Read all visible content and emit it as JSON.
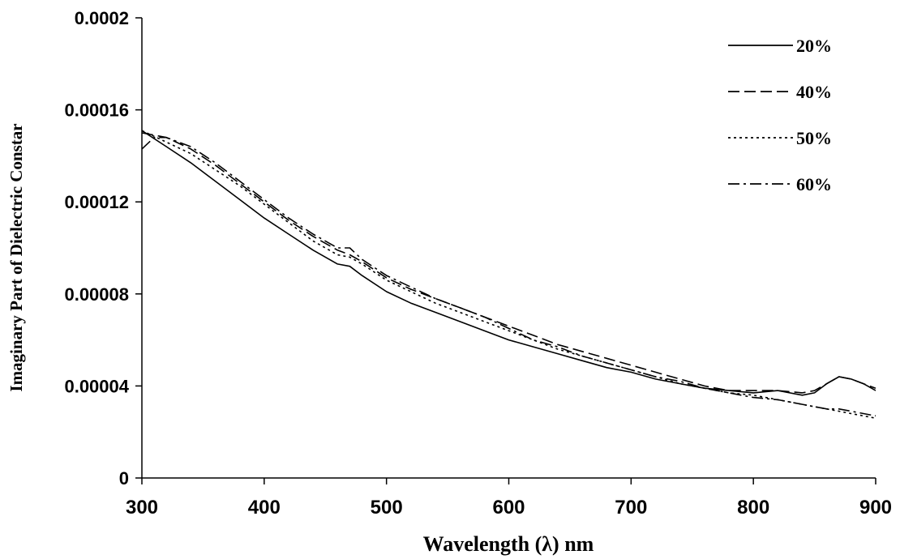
{
  "chart_data": {
    "type": "line",
    "title": "",
    "xlabel": "Wavelength (λ) nm",
    "ylabel": "Imaginary Part of Dielectric Constar",
    "xlim": [
      300,
      900
    ],
    "ylim": [
      0,
      0.0002
    ],
    "xticks": [
      300,
      400,
      500,
      600,
      700,
      800,
      900
    ],
    "xtick_labels": [
      "300",
      "400",
      "500",
      "600",
      "700",
      "800",
      "900"
    ],
    "yticks": [
      0,
      4e-05,
      8e-05,
      0.00012,
      0.00016,
      0.0002
    ],
    "ytick_labels": [
      "0",
      "0.00004",
      "0.00008",
      "0.00012",
      "0.00016",
      "0.0002"
    ],
    "grid": false,
    "legend_position": "top-right",
    "series": [
      {
        "name": "20%",
        "dash": "solid",
        "x": [
          300,
          320,
          340,
          360,
          380,
          400,
          420,
          440,
          460,
          470,
          480,
          500,
          520,
          540,
          560,
          580,
          600,
          620,
          640,
          660,
          680,
          700,
          720,
          740,
          760,
          780,
          800,
          820,
          840,
          850,
          860,
          870,
          880,
          890,
          900
        ],
        "y": [
          0.000151,
          0.000144,
          0.000137,
          0.000129,
          0.000121,
          0.000113,
          0.000106,
          9.9e-05,
          9.3e-05,
          9.2e-05,
          8.8e-05,
          8.1e-05,
          7.6e-05,
          7.2e-05,
          6.8e-05,
          6.4e-05,
          6e-05,
          5.7e-05,
          5.4e-05,
          5.1e-05,
          4.8e-05,
          4.6e-05,
          4.3e-05,
          4.1e-05,
          3.9e-05,
          3.8e-05,
          3.7e-05,
          3.8e-05,
          3.6e-05,
          3.7e-05,
          4.1e-05,
          4.4e-05,
          4.3e-05,
          4.1e-05,
          3.8e-05
        ]
      },
      {
        "name": "40%",
        "dash": "dash",
        "x": [
          300,
          320,
          340,
          360,
          380,
          400,
          420,
          440,
          460,
          470,
          480,
          500,
          520,
          540,
          560,
          580,
          600,
          620,
          640,
          660,
          680,
          700,
          720,
          740,
          760,
          780,
          800,
          820,
          840,
          850,
          860,
          870,
          880,
          890,
          900
        ],
        "y": [
          0.00015,
          0.000148,
          0.000143,
          0.000136,
          0.000128,
          0.00012,
          0.000112,
          0.000105,
          9.9e-05,
          9.7e-05,
          9.4e-05,
          8.7e-05,
          8.2e-05,
          7.8e-05,
          7.4e-05,
          7e-05,
          6.6e-05,
          6.2e-05,
          5.8e-05,
          5.5e-05,
          5.2e-05,
          4.9e-05,
          4.6e-05,
          4.3e-05,
          4e-05,
          3.8e-05,
          3.8e-05,
          3.8e-05,
          3.7e-05,
          3.8e-05,
          4.1e-05,
          4.4e-05,
          4.3e-05,
          4.1e-05,
          3.9e-05
        ]
      },
      {
        "name": "50%",
        "dash": "dot",
        "x": [
          300,
          320,
          340,
          360,
          380,
          400,
          420,
          440,
          460,
          470,
          480,
          500,
          520,
          540,
          560,
          580,
          600,
          620,
          640,
          660,
          680,
          700,
          720,
          740,
          760,
          780,
          800,
          820,
          840,
          850,
          860,
          870,
          880,
          890,
          900
        ],
        "y": [
          0.000151,
          0.000146,
          0.000141,
          0.000134,
          0.000127,
          0.000119,
          0.000111,
          0.000103,
          9.7e-05,
          9.6e-05,
          9.3e-05,
          8.6e-05,
          8.1e-05,
          7.6e-05,
          7.2e-05,
          6.8e-05,
          6.4e-05,
          6e-05,
          5.6e-05,
          5.3e-05,
          5e-05,
          4.7e-05,
          4.4e-05,
          4.1e-05,
          3.9e-05,
          3.7e-05,
          3.6e-05,
          3.4e-05,
          3.2e-05,
          3.1e-05,
          3e-05,
          2.9e-05,
          2.8e-05,
          2.7e-05,
          2.6e-05
        ]
      },
      {
        "name": "60%",
        "dash": "dashdot",
        "x": [
          300,
          310,
          320,
          340,
          360,
          380,
          400,
          420,
          440,
          460,
          470,
          480,
          500,
          520,
          540,
          560,
          580,
          600,
          620,
          640,
          660,
          680,
          700,
          720,
          740,
          760,
          780,
          800,
          820,
          840,
          850,
          860,
          870,
          880,
          890,
          900
        ],
        "y": [
          0.000143,
          0.000148,
          0.000148,
          0.000144,
          0.000137,
          0.000129,
          0.000121,
          0.000113,
          0.000106,
          0.0001,
          0.0001,
          9.5e-05,
          8.8e-05,
          8.3e-05,
          7.8e-05,
          7.4e-05,
          7e-05,
          6.5e-05,
          6e-05,
          5.7e-05,
          5.3e-05,
          5e-05,
          4.7e-05,
          4.4e-05,
          4.2e-05,
          3.9e-05,
          3.7e-05,
          3.5e-05,
          3.4e-05,
          3.2e-05,
          3.1e-05,
          3e-05,
          3e-05,
          2.9e-05,
          2.8e-05,
          2.7e-05
        ]
      }
    ]
  }
}
